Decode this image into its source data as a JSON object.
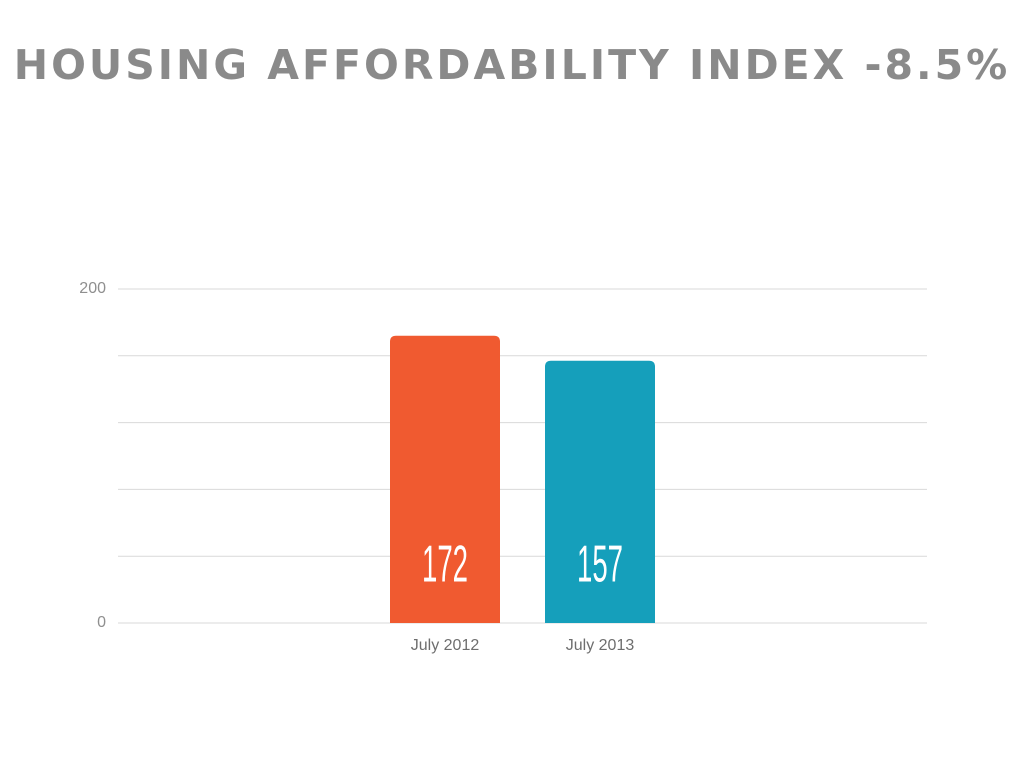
{
  "chart_data": {
    "type": "bar",
    "title": "HOUSING AFFORDABILITY INDEX -8.5%",
    "categories": [
      "July 2012",
      "July 2013"
    ],
    "values": [
      172,
      157
    ],
    "colors": [
      "#f05a30",
      "#159fbb"
    ],
    "ylim": [
      0,
      200
    ],
    "yticks": [
      0,
      {
        "value": 40,
        "label": null
      },
      {
        "value": 80,
        "label": null
      },
      {
        "value": 120,
        "label": null
      },
      {
        "value": 160,
        "label": null
      },
      200
    ],
    "grid": true
  }
}
